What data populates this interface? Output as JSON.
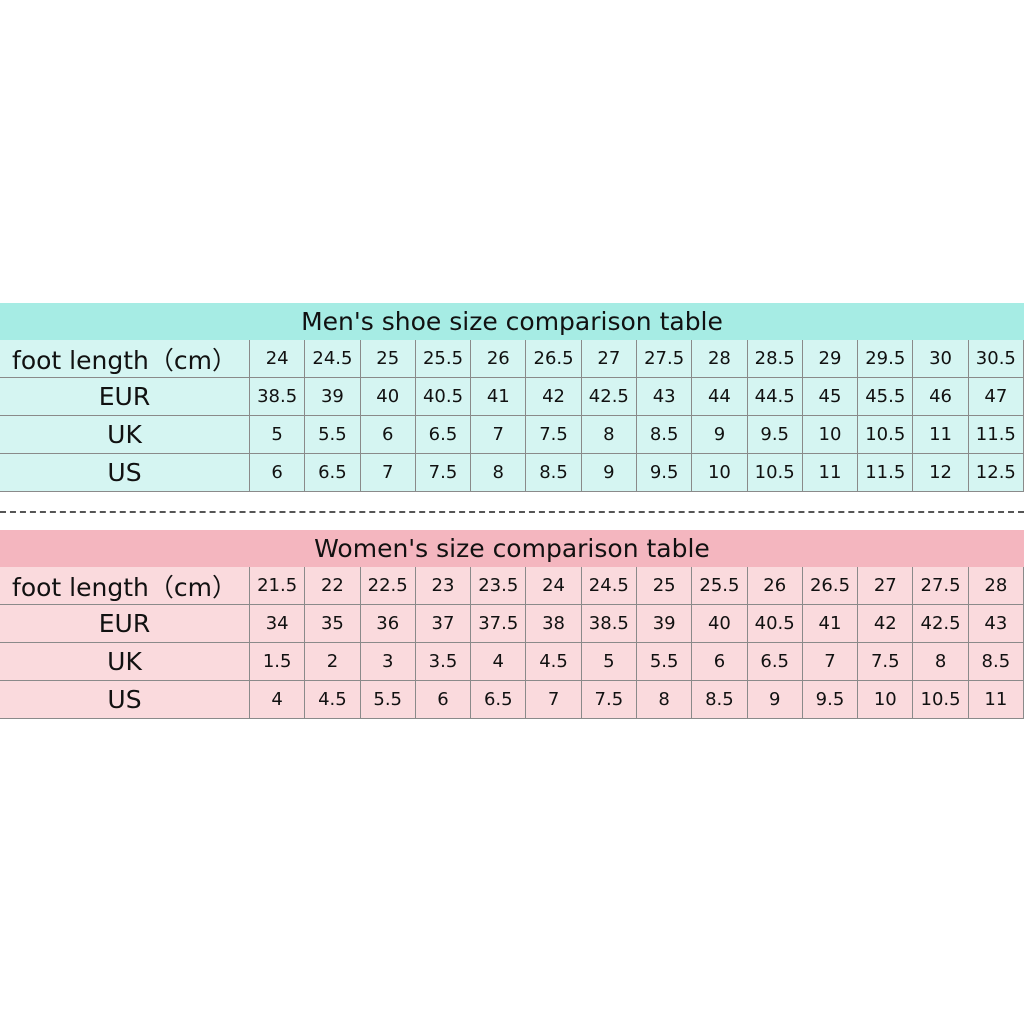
{
  "tables": [
    {
      "title": "Men's shoe size comparison table",
      "rows": [
        {
          "label": "foot length（cm）",
          "values": [
            24,
            24.5,
            25,
            25.5,
            26,
            26.5,
            27,
            27.5,
            28,
            28.5,
            29,
            29.5,
            30,
            30.5
          ]
        },
        {
          "label": "EUR",
          "values": [
            38.5,
            39,
            40,
            40.5,
            41,
            42,
            42.5,
            43,
            44,
            44.5,
            45,
            45.5,
            46,
            47
          ]
        },
        {
          "label": "UK",
          "values": [
            5,
            5.5,
            6,
            6.5,
            7,
            7.5,
            8,
            8.5,
            9,
            9.5,
            10,
            10.5,
            11,
            11.5
          ]
        },
        {
          "label": "US",
          "values": [
            6,
            6.5,
            7,
            7.5,
            8,
            8.5,
            9,
            9.5,
            10,
            10.5,
            11,
            11.5,
            12,
            12.5
          ]
        }
      ]
    },
    {
      "title": "Women's size comparison table",
      "rows": [
        {
          "label": "foot length（cm）",
          "values": [
            21.5,
            22,
            22.5,
            23,
            23.5,
            24,
            24.5,
            25,
            25.5,
            26,
            26.5,
            27,
            27.5,
            28
          ]
        },
        {
          "label": "EUR",
          "values": [
            34,
            35,
            36,
            37,
            37.5,
            38,
            38.5,
            39,
            40,
            40.5,
            41,
            42,
            42.5,
            43
          ]
        },
        {
          "label": "UK",
          "values": [
            1.5,
            2,
            3,
            3.5,
            4,
            4.5,
            5,
            5.5,
            6,
            6.5,
            7,
            7.5,
            8,
            8.5
          ]
        },
        {
          "label": "US",
          "values": [
            4,
            4.5,
            5.5,
            6,
            6.5,
            7,
            7.5,
            8,
            8.5,
            9,
            9.5,
            10,
            10.5,
            11
          ]
        }
      ]
    }
  ]
}
